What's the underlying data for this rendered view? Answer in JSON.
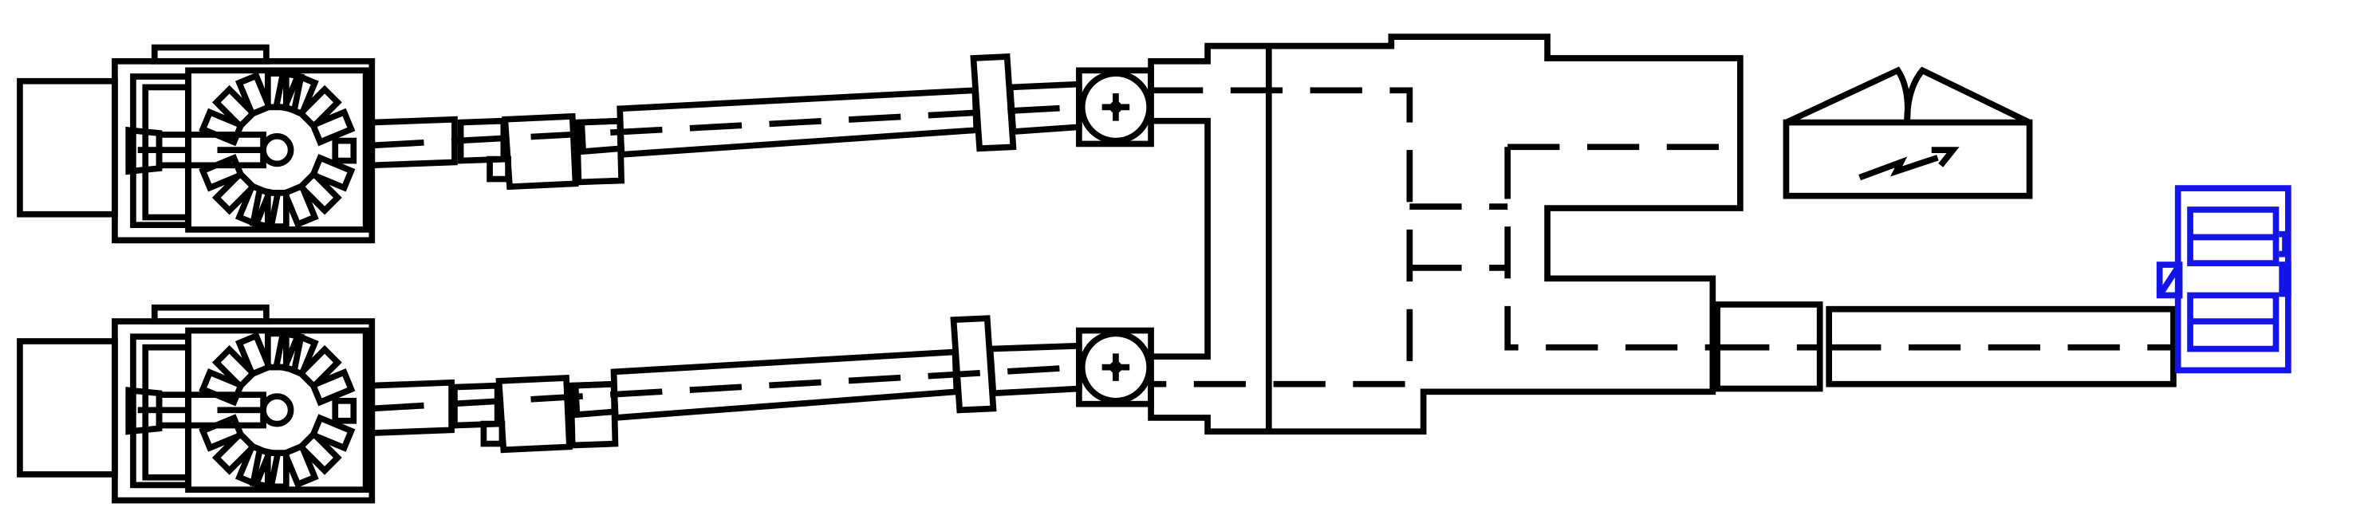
{
  "diagram": {
    "kind": "mechanical drivetrain schematic",
    "text_labels": [],
    "colors": {
      "line": "#000000",
      "selected_component": "#1414e6",
      "background": "#ffffff"
    },
    "components": [
      {
        "name": "engine-upper",
        "icon": "engine-icon"
      },
      {
        "name": "engine-lower",
        "icon": "engine-icon"
      },
      {
        "name": "shaft-upper",
        "icon": "shaft-icon"
      },
      {
        "name": "shaft-lower",
        "icon": "shaft-icon"
      },
      {
        "name": "gearbox",
        "icon": "gearbox-icon"
      },
      {
        "name": "generator",
        "icon": "generator-icon"
      },
      {
        "name": "output-shaft",
        "icon": "shaft-icon"
      },
      {
        "name": "propeller",
        "icon": "propeller-icon",
        "selected": true
      }
    ]
  }
}
